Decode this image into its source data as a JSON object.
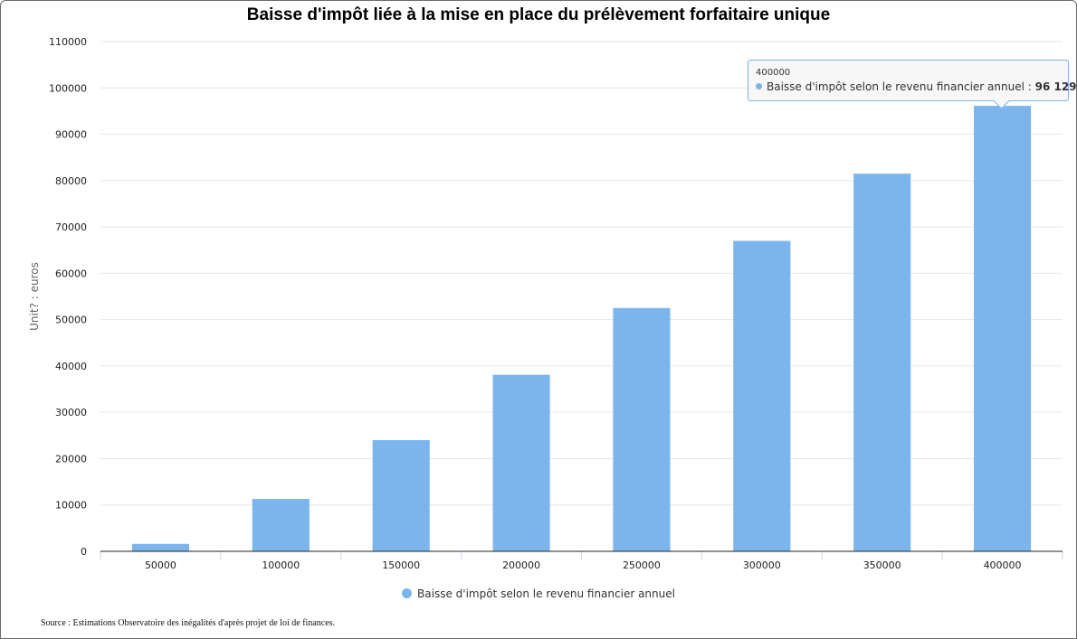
{
  "chart_data": {
    "type": "bar",
    "title": "Baisse d'impôt liée à la mise en place du prélèvement forfaitaire unique",
    "ylabel": "Unit? : euros",
    "xlabel": "",
    "categories": [
      "50000",
      "100000",
      "150000",
      "200000",
      "250000",
      "300000",
      "350000",
      "400000"
    ],
    "series": [
      {
        "name": "Baisse d'impôt selon le revenu financier annuel",
        "color": "#7cb5ec",
        "values": [
          1600,
          11300,
          24000,
          38100,
          52500,
          67000,
          81500,
          96129
        ]
      }
    ],
    "ylim": [
      0,
      110000
    ],
    "yticks": [
      "0",
      "10000",
      "20000",
      "30000",
      "40000",
      "50000",
      "60000",
      "70000",
      "80000",
      "90000",
      "100000",
      "110000"
    ],
    "grid": true,
    "legend_position": "bottom-center"
  },
  "tooltip": {
    "category": "400000",
    "series_label": "Baisse d'impôt selon le revenu financier annuel : ",
    "value": "96 129"
  },
  "source": "Source : Estimations Observatoire des inégalités d'après projet de loi de finances."
}
